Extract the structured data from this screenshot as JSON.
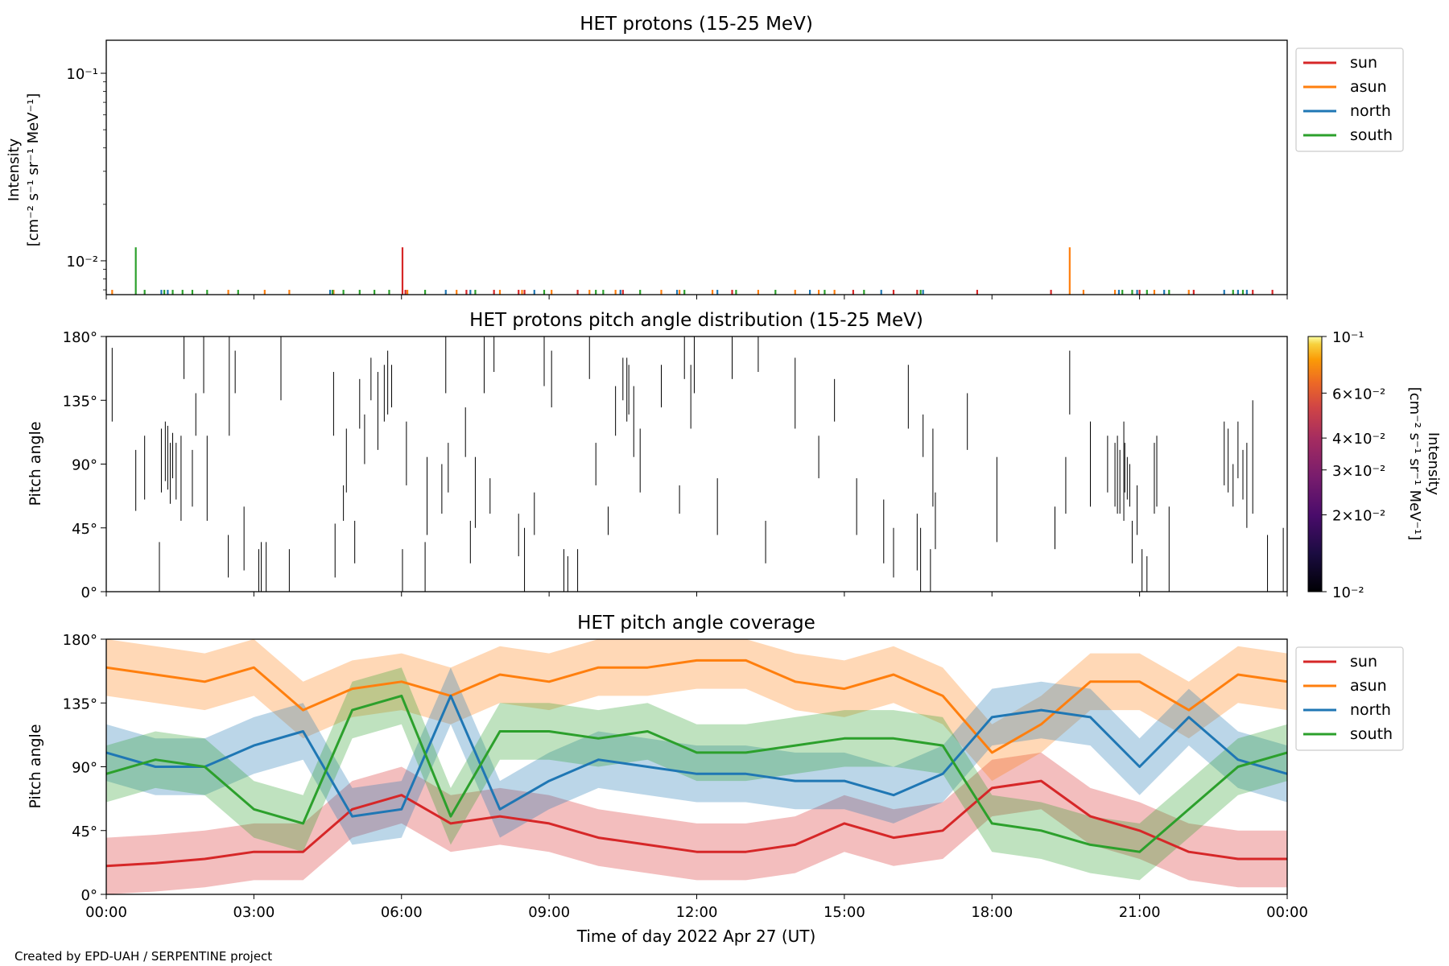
{
  "footer": "Created by EPD-UAH / SERPENTINE project",
  "xlabel": "Time of day 2022 Apr 27 (UT)",
  "x_ticks": [
    "00:00",
    "03:00",
    "06:00",
    "09:00",
    "12:00",
    "15:00",
    "18:00",
    "21:00",
    "00:00"
  ],
  "colors": {
    "sun": "#d62728",
    "asun": "#ff7f0e",
    "north": "#1f77b4",
    "south": "#2ca02c"
  },
  "chart_data": [
    {
      "type": "bar",
      "title": "HET protons (15-25 MeV)",
      "ylabel_line1": "Intensity",
      "ylabel_line2": "[cm⁻² s⁻¹ sr⁻¹ MeV⁻¹]",
      "x_unit": "hours since 00:00 UT",
      "xlim": [
        0,
        24
      ],
      "yscale": "log",
      "ylim": [
        0.0066,
        0.15
      ],
      "y_ticks": [
        "10⁻²",
        "10⁻¹"
      ],
      "legend": {
        "placement": "outside-right",
        "entries": [
          "sun",
          "asun",
          "north",
          "south"
        ]
      },
      "series": [
        {
          "name": "sun",
          "x": [
            6.02,
            6.08,
            7.32,
            7.88,
            8.38,
            8.5,
            9.58,
            10.5,
            12.72,
            15.18,
            16.0,
            16.48,
            17.7,
            19.2,
            21.0,
            22.1,
            23.3,
            23.7
          ],
          "values": [
            0.0118,
            0.007,
            0.007,
            0.007,
            0.007,
            0.007,
            0.007,
            0.007,
            0.007,
            0.007,
            0.007,
            0.007,
            0.007,
            0.007,
            0.007,
            0.007,
            0.007,
            0.007
          ]
        },
        {
          "name": "asun",
          "x": [
            0.12,
            2.48,
            3.22,
            3.72,
            4.62,
            6.12,
            7.12,
            8.0,
            8.45,
            9.05,
            9.82,
            10.35,
            11.28,
            11.65,
            12.32,
            13.25,
            14.0,
            14.48,
            14.8,
            19.58,
            19.86,
            20.5,
            21.3,
            22.0
          ],
          "values": [
            0.007,
            0.007,
            0.007,
            0.007,
            0.007,
            0.007,
            0.007,
            0.007,
            0.007,
            0.007,
            0.007,
            0.007,
            0.007,
            0.007,
            0.007,
            0.007,
            0.007,
            0.007,
            0.007,
            0.0118,
            0.007,
            0.007,
            0.007,
            0.007
          ]
        },
        {
          "name": "north",
          "x": [
            1.12,
            1.25,
            4.55,
            6.9,
            7.4,
            8.7,
            10.45,
            11.6,
            12.42,
            14.3,
            15.75,
            16.6,
            20.58,
            20.95,
            21.5,
            22.72,
            23.0,
            23.18
          ],
          "values": [
            0.007,
            0.007,
            0.007,
            0.007,
            0.007,
            0.007,
            0.007,
            0.007,
            0.007,
            0.007,
            0.007,
            0.007,
            0.007,
            0.007,
            0.007,
            0.007,
            0.007,
            0.007
          ]
        },
        {
          "name": "south",
          "x": [
            0.6,
            0.78,
            1.18,
            1.35,
            1.55,
            1.75,
            2.05,
            2.68,
            4.6,
            4.82,
            5.15,
            5.45,
            5.75,
            6.48,
            7.5,
            8.9,
            9.95,
            10.1,
            10.85,
            11.75,
            12.8,
            13.6,
            14.6,
            15.4,
            16.55,
            20.65,
            20.85,
            21.15,
            21.6,
            22.9,
            23.1
          ],
          "values": [
            0.0118,
            0.007,
            0.007,
            0.007,
            0.007,
            0.007,
            0.007,
            0.007,
            0.007,
            0.007,
            0.007,
            0.007,
            0.007,
            0.007,
            0.007,
            0.007,
            0.007,
            0.007,
            0.007,
            0.007,
            0.007,
            0.007,
            0.007,
            0.007,
            0.007,
            0.007,
            0.007,
            0.007,
            0.007,
            0.007,
            0.007
          ]
        }
      ]
    },
    {
      "type": "heatmap",
      "title": "HET protons pitch angle distribution (15-25 MeV)",
      "ylabel": "Pitch angle",
      "xlim": [
        0,
        24
      ],
      "ylim": [
        0,
        180
      ],
      "y_ticks": [
        "0°",
        "45°",
        "90°",
        "135°",
        "180°"
      ],
      "colorbar": {
        "label_line1": "Intensity",
        "label_line2": "[cm⁻² s⁻¹ sr⁻¹ MeV⁻¹]",
        "scale": "log",
        "range": [
          0.01,
          0.1
        ],
        "ticks": [
          {
            "value": 0.1,
            "label": "10⁻¹"
          },
          {
            "value": 0.06,
            "label": "6×10⁻²"
          },
          {
            "value": 0.04,
            "label": "4×10⁻²"
          },
          {
            "value": 0.03,
            "label": "3×10⁻²"
          },
          {
            "value": 0.02,
            "label": "2×10⁻²"
          },
          {
            "value": 0.01,
            "label": "10⁻²"
          }
        ]
      },
      "marks": [
        [
          0.12,
          120,
          172
        ],
        [
          0.6,
          57,
          100
        ],
        [
          0.78,
          65,
          110
        ],
        [
          1.08,
          0,
          35
        ],
        [
          1.12,
          70,
          115
        ],
        [
          1.2,
          78,
          120
        ],
        [
          1.25,
          72,
          117
        ],
        [
          1.3,
          62,
          105
        ],
        [
          1.35,
          80,
          112
        ],
        [
          1.42,
          65,
          105
        ],
        [
          1.52,
          50,
          110
        ],
        [
          1.58,
          150,
          180
        ],
        [
          1.75,
          60,
          100
        ],
        [
          1.82,
          110,
          140
        ],
        [
          1.98,
          140,
          180
        ],
        [
          2.05,
          50,
          110
        ],
        [
          2.48,
          10,
          40
        ],
        [
          2.5,
          110,
          180
        ],
        [
          2.62,
          140,
          170
        ],
        [
          2.8,
          15,
          60
        ],
        [
          3.1,
          0,
          30
        ],
        [
          3.15,
          0,
          35
        ],
        [
          3.25,
          0,
          35
        ],
        [
          3.55,
          135,
          180
        ],
        [
          3.72,
          0,
          30
        ],
        [
          4.62,
          110,
          155
        ],
        [
          4.65,
          10,
          48
        ],
        [
          4.82,
          50,
          75
        ],
        [
          4.88,
          70,
          115
        ],
        [
          5.05,
          20,
          50
        ],
        [
          5.15,
          115,
          150
        ],
        [
          5.25,
          90,
          125
        ],
        [
          5.38,
          135,
          165
        ],
        [
          5.52,
          100,
          155
        ],
        [
          5.65,
          120,
          160
        ],
        [
          5.72,
          125,
          170
        ],
        [
          5.8,
          130,
          160
        ],
        [
          6.02,
          0,
          30
        ],
        [
          6.1,
          75,
          120
        ],
        [
          6.48,
          0,
          35
        ],
        [
          6.52,
          40,
          95
        ],
        [
          6.82,
          55,
          90
        ],
        [
          6.9,
          140,
          180
        ],
        [
          6.95,
          70,
          105
        ],
        [
          7.3,
          95,
          130
        ],
        [
          7.4,
          20,
          50
        ],
        [
          7.5,
          45,
          95
        ],
        [
          7.68,
          140,
          180
        ],
        [
          7.8,
          55,
          80
        ],
        [
          7.88,
          155,
          180
        ],
        [
          8.38,
          25,
          55
        ],
        [
          8.5,
          0,
          45
        ],
        [
          8.7,
          40,
          70
        ],
        [
          8.9,
          145,
          180
        ],
        [
          9.05,
          130,
          170
        ],
        [
          9.3,
          0,
          30
        ],
        [
          9.38,
          0,
          25
        ],
        [
          9.58,
          0,
          30
        ],
        [
          9.82,
          150,
          180
        ],
        [
          9.95,
          75,
          105
        ],
        [
          10.2,
          40,
          60
        ],
        [
          10.35,
          110,
          145
        ],
        [
          10.5,
          135,
          165
        ],
        [
          10.58,
          120,
          165
        ],
        [
          10.62,
          125,
          160
        ],
        [
          10.72,
          95,
          145
        ],
        [
          10.85,
          70,
          115
        ],
        [
          11.28,
          130,
          160
        ],
        [
          11.65,
          55,
          75
        ],
        [
          11.75,
          150,
          180
        ],
        [
          11.88,
          115,
          160
        ],
        [
          11.95,
          140,
          180
        ],
        [
          12.42,
          40,
          80
        ],
        [
          12.72,
          150,
          180
        ],
        [
          13.25,
          155,
          180
        ],
        [
          13.4,
          20,
          50
        ],
        [
          14.0,
          115,
          165
        ],
        [
          14.48,
          80,
          110
        ],
        [
          14.8,
          120,
          150
        ],
        [
          15.25,
          40,
          80
        ],
        [
          15.8,
          20,
          65
        ],
        [
          16.0,
          10,
          45
        ],
        [
          16.3,
          115,
          160
        ],
        [
          16.48,
          15,
          55
        ],
        [
          16.55,
          0,
          45
        ],
        [
          16.6,
          95,
          125
        ],
        [
          16.75,
          0,
          30
        ],
        [
          16.8,
          60,
          115
        ],
        [
          16.85,
          30,
          70
        ],
        [
          17.5,
          100,
          140
        ],
        [
          18.1,
          35,
          95
        ],
        [
          19.28,
          30,
          60
        ],
        [
          19.5,
          55,
          95
        ],
        [
          19.58,
          125,
          170
        ],
        [
          20.0,
          60,
          120
        ],
        [
          20.35,
          70,
          110
        ],
        [
          20.5,
          60,
          105
        ],
        [
          20.55,
          55,
          110
        ],
        [
          20.6,
          55,
          100
        ],
        [
          20.68,
          50,
          120
        ],
        [
          20.7,
          70,
          105
        ],
        [
          20.75,
          65,
          95
        ],
        [
          20.8,
          60,
          90
        ],
        [
          20.85,
          20,
          50
        ],
        [
          20.95,
          40,
          75
        ],
        [
          21.05,
          0,
          30
        ],
        [
          21.15,
          0,
          25
        ],
        [
          21.3,
          55,
          105
        ],
        [
          21.35,
          60,
          110
        ],
        [
          21.6,
          0,
          60
        ],
        [
          22.72,
          75,
          120
        ],
        [
          22.8,
          70,
          115
        ],
        [
          22.9,
          60,
          90
        ],
        [
          23.0,
          80,
          120
        ],
        [
          23.1,
          65,
          100
        ],
        [
          23.18,
          45,
          105
        ],
        [
          23.3,
          55,
          135
        ],
        [
          23.6,
          0,
          40
        ],
        [
          23.92,
          0,
          45
        ]
      ]
    },
    {
      "type": "area",
      "title": "HET pitch angle coverage",
      "ylabel": "Pitch angle",
      "xlim": [
        0,
        24
      ],
      "ylim": [
        0,
        180
      ],
      "y_ticks": [
        "0°",
        "45°",
        "90°",
        "135°",
        "180°"
      ],
      "legend": {
        "placement": "outside-right",
        "entries": [
          "sun",
          "asun",
          "north",
          "south"
        ]
      },
      "band_halfwidth_deg": 20,
      "x": [
        0,
        1,
        2,
        3,
        4,
        5,
        6,
        7,
        8,
        9,
        10,
        11,
        12,
        13,
        14,
        15,
        16,
        17,
        18,
        19,
        20,
        21,
        22,
        23,
        24
      ],
      "series": [
        {
          "name": "sun",
          "values": [
            20,
            22,
            25,
            30,
            30,
            60,
            70,
            50,
            55,
            50,
            40,
            35,
            30,
            30,
            35,
            50,
            40,
            45,
            75,
            80,
            55,
            45,
            30,
            25,
            25
          ]
        },
        {
          "name": "asun",
          "values": [
            160,
            155,
            150,
            160,
            130,
            145,
            150,
            140,
            155,
            150,
            160,
            160,
            165,
            165,
            150,
            145,
            155,
            140,
            100,
            120,
            150,
            150,
            130,
            155,
            150
          ]
        },
        {
          "name": "north",
          "values": [
            100,
            90,
            90,
            105,
            115,
            55,
            60,
            140,
            60,
            80,
            95,
            90,
            85,
            85,
            80,
            80,
            70,
            85,
            125,
            130,
            125,
            90,
            125,
            95,
            85
          ]
        },
        {
          "name": "south",
          "values": [
            85,
            95,
            90,
            60,
            50,
            130,
            140,
            55,
            115,
            115,
            110,
            115,
            100,
            100,
            105,
            110,
            110,
            105,
            50,
            45,
            35,
            30,
            60,
            90,
            100
          ]
        }
      ]
    }
  ]
}
